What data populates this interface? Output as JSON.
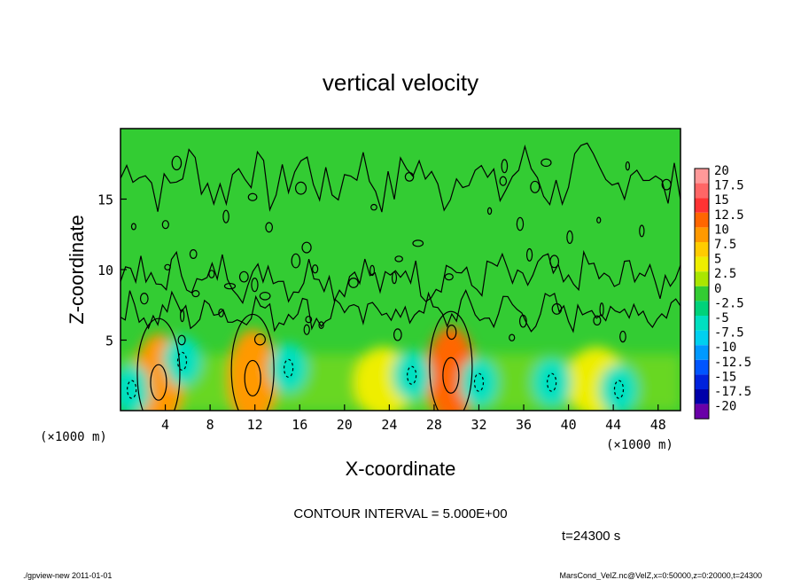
{
  "footer": {
    "left": "./gpview-new   2011-01-01",
    "right": "MarsCond_VelZ.nc@VelZ,x=0:50000,z=0:20000,t=24300"
  },
  "chart_data": {
    "type": "heatmap",
    "title": "vertical velocity",
    "xlabel": "X-coordinate",
    "ylabel": "Z-coordinate",
    "x_unit_left": "(×1000 m)",
    "x_unit_right": "(×1000 m)",
    "x_ticks": [
      4,
      8,
      12,
      16,
      20,
      24,
      28,
      32,
      36,
      40,
      44,
      48
    ],
    "y_ticks": [
      5,
      10,
      15
    ],
    "xlim": [
      0,
      50
    ],
    "ylim": [
      0,
      20
    ],
    "contour_interval_text": "CONTOUR INTERVAL = 5.000E+00",
    "time_text": "t=24300 s",
    "colorbar": {
      "labels": [
        "20",
        "17.5",
        "15",
        "12.5",
        "10",
        "7.5",
        "5",
        "2.5",
        "0",
        "-2.5",
        "-5",
        "-7.5",
        "-10",
        "-12.5",
        "-15",
        "-17.5",
        "-20"
      ],
      "colors": [
        "#ff9999",
        "#ff6666",
        "#ff3333",
        "#ff6600",
        "#ff9900",
        "#ffcc00",
        "#eeee00",
        "#aae600",
        "#33cc33",
        "#00d27a",
        "#00e0c0",
        "#00d0f0",
        "#0099ff",
        "#0055ff",
        "#0022dd",
        "#0000aa",
        "#6a00a8"
      ]
    },
    "features": [
      {
        "kind": "updraft",
        "x": 3.4,
        "z": 2.0,
        "w": 10
      },
      {
        "kind": "updraft",
        "x": 11.8,
        "z": 2.3,
        "w": 10
      },
      {
        "kind": "updraft",
        "x": 29.5,
        "z": 2.5,
        "w": 12
      },
      {
        "kind": "updraft",
        "x": 42.5,
        "z": 2.0,
        "w": 5
      },
      {
        "kind": "updraft",
        "x": 23.5,
        "z": 2.0,
        "w": 5
      },
      {
        "kind": "downdraft",
        "x": 1.0,
        "z": 1.5,
        "w": -5
      },
      {
        "kind": "downdraft",
        "x": 5.5,
        "z": 3.5,
        "w": -5
      },
      {
        "kind": "downdraft",
        "x": 15.0,
        "z": 3.0,
        "w": -5
      },
      {
        "kind": "downdraft",
        "x": 26.0,
        "z": 2.5,
        "w": -5
      },
      {
        "kind": "downdraft",
        "x": 32.0,
        "z": 2.0,
        "w": -5
      },
      {
        "kind": "downdraft",
        "x": 38.5,
        "z": 2.0,
        "w": -5
      },
      {
        "kind": "downdraft",
        "x": 44.5,
        "z": 1.5,
        "w": -5
      }
    ]
  }
}
